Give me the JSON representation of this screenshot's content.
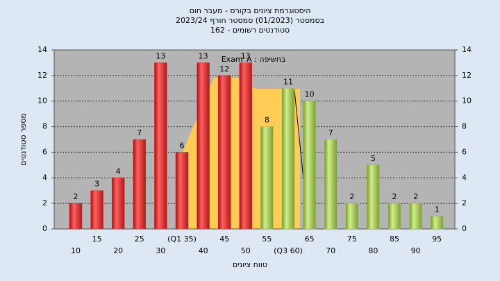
{
  "chart_data": {
    "type": "bar",
    "title": [
      "היסטוגרמת ציונים בקורס - מעבר חום",
      "בסמסטר  (01/2023)  סמסטר חורף 2023/24",
      "סטודנטים רשומים - 162"
    ],
    "annotation": "בחשיפה : Exam_A",
    "x_label": "טווח ציונים",
    "y_label": "מספר סטודנטים",
    "categories": [
      "10",
      "15",
      "20",
      "25",
      "30",
      "(Q1 35)",
      "40",
      "45",
      "50",
      "55",
      "(Q3 60)",
      "65",
      "70",
      "75",
      "80",
      "85",
      "90",
      "95"
    ],
    "values": [
      2,
      3,
      4,
      7,
      13,
      6,
      13,
      12,
      13,
      8,
      11,
      10,
      7,
      2,
      5,
      2,
      2,
      1
    ],
    "colors": [
      "#e03030",
      "#e03030",
      "#e03030",
      "#e03030",
      "#e03030",
      "#e03030",
      "#e03030",
      "#e03030",
      "#e03030",
      "#9cc24a",
      "#9cc24a",
      "#9cc24a",
      "#9cc24a",
      "#9cc24a",
      "#9cc24a",
      "#9cc24a",
      "#9cc24a",
      "#9cc24a"
    ],
    "ylim": [
      0,
      14
    ],
    "yticks": [
      0,
      2,
      4,
      6,
      8,
      10,
      12,
      14
    ],
    "grid": true
  }
}
